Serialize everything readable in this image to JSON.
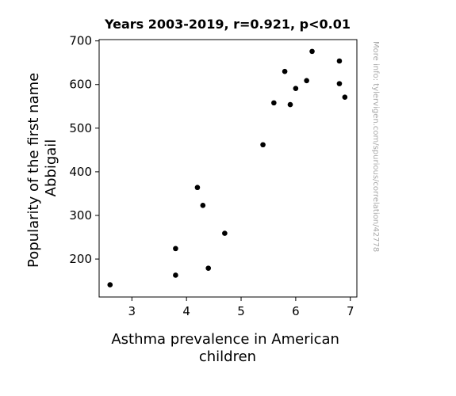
{
  "chart_data": {
    "type": "scatter",
    "title": "Years 2003-2019, r=0.921, p<0.01",
    "xlabel_lines": [
      "Asthma prevalence in American",
      "children"
    ],
    "ylabel_lines": [
      "Popularity of the first name",
      "Abbigail"
    ],
    "watermark": "More info: tylervigen.com/spurious/correlation/42778",
    "xlim": [
      2.4,
      7.12
    ],
    "ylim": [
      113,
      703
    ],
    "xticks": [
      3,
      4,
      5,
      6,
      7
    ],
    "yticks": [
      200,
      300,
      400,
      500,
      600,
      700
    ],
    "grid": false,
    "point_color": "#000000",
    "points": [
      {
        "x": 2.6,
        "y": 141
      },
      {
        "x": 3.8,
        "y": 224
      },
      {
        "x": 3.8,
        "y": 163
      },
      {
        "x": 4.2,
        "y": 364
      },
      {
        "x": 4.3,
        "y": 323
      },
      {
        "x": 4.4,
        "y": 179
      },
      {
        "x": 4.7,
        "y": 259
      },
      {
        "x": 5.4,
        "y": 462
      },
      {
        "x": 5.6,
        "y": 558
      },
      {
        "x": 5.8,
        "y": 630
      },
      {
        "x": 5.9,
        "y": 554
      },
      {
        "x": 6.0,
        "y": 591
      },
      {
        "x": 6.2,
        "y": 609
      },
      {
        "x": 6.3,
        "y": 676
      },
      {
        "x": 6.8,
        "y": 654
      },
      {
        "x": 6.8,
        "y": 602
      },
      {
        "x": 6.9,
        "y": 571
      }
    ]
  }
}
